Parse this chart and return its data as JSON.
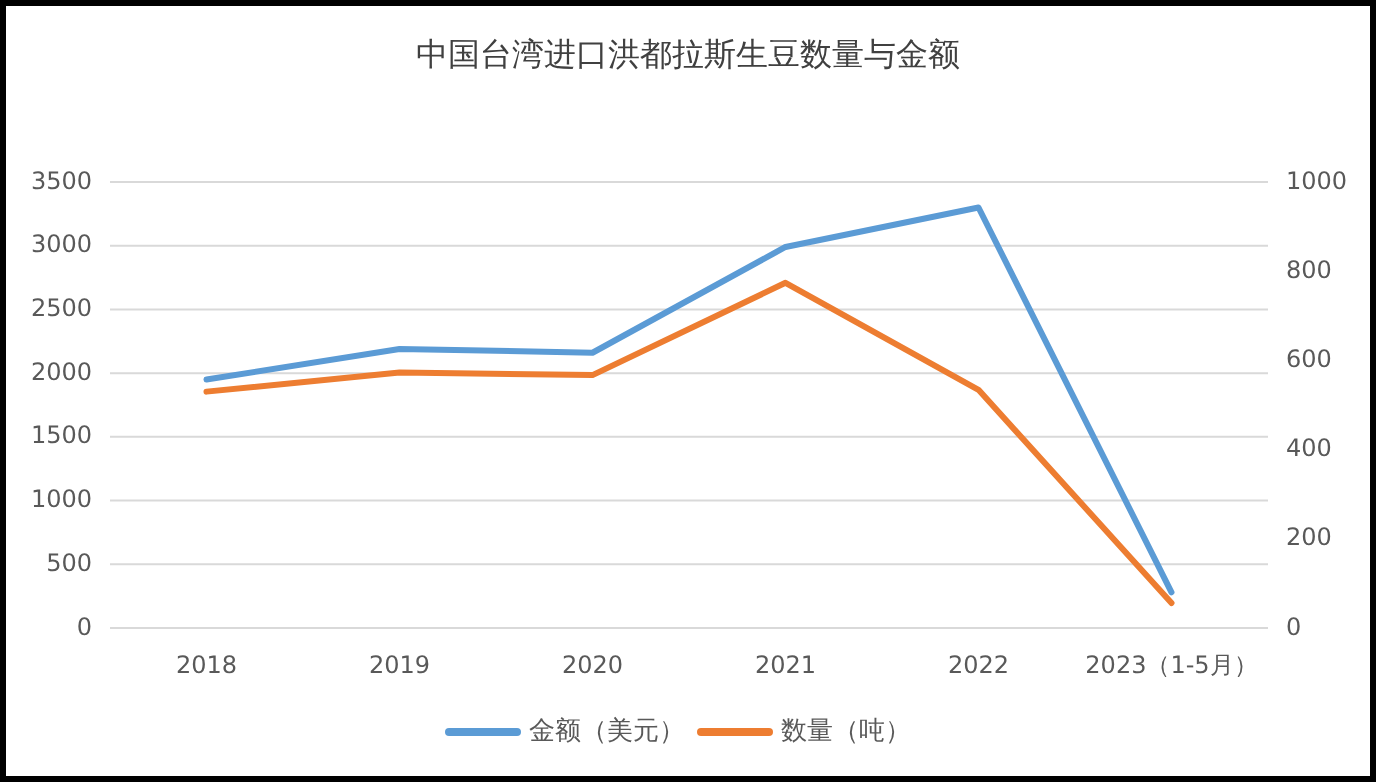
{
  "chart_data": {
    "type": "line",
    "title": "中国台湾进口洪都拉斯生豆数量与金额",
    "categories": [
      "2018",
      "2019",
      "2020",
      "2021",
      "2022",
      "2023（1-5月）"
    ],
    "series": [
      {
        "name": "金额（美元）",
        "color": "#5b9bd5",
        "values": [
          1950,
          2190,
          2160,
          2990,
          3300,
          280
        ]
      },
      {
        "name": "数量（吨）",
        "color": "#ed7d31",
        "axis": "y2",
        "values": [
          530,
          573,
          567,
          774,
          534,
          56
        ]
      }
    ],
    "ylim": [
      0,
      3500
    ],
    "yticks": [
      0,
      500,
      1000,
      1500,
      2000,
      2500,
      3000,
      3500
    ],
    "y2lim": [
      0,
      1000
    ],
    "y2ticks": [
      0,
      200,
      400,
      600,
      800,
      1000
    ],
    "grid": "y",
    "legend": "bottom",
    "line_style": "solid"
  }
}
